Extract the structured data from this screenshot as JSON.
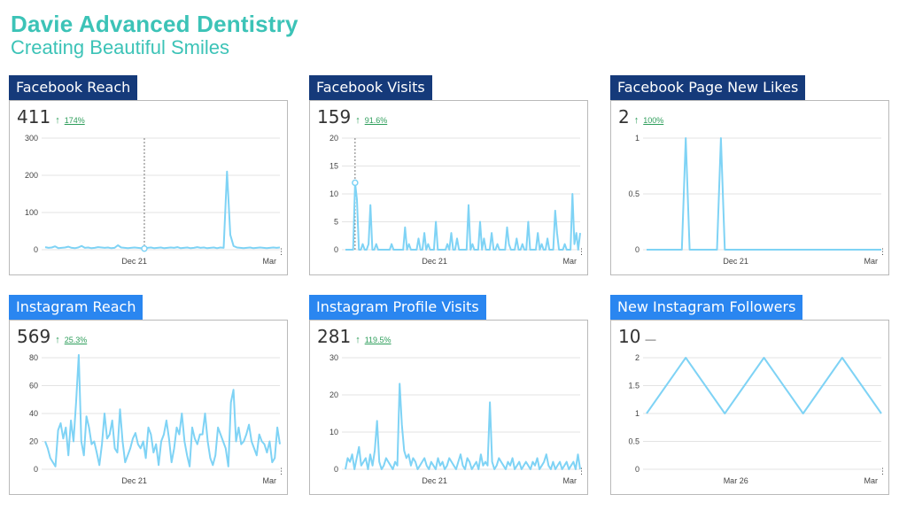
{
  "header": {
    "title": "Davie Advanced Dentistry",
    "subtitle": "Creating Beautiful Smiles"
  },
  "colors": {
    "brand": "#3cc3b7",
    "label_dark": "#153a7a",
    "label_light": "#2a86f0",
    "line": "#7fd3f5",
    "up": "#2e9e5b"
  },
  "panels": [
    {
      "label": "Facebook Reach",
      "value": "411",
      "change": "174%",
      "arrow": "↑",
      "style": "dark",
      "chart_data": {
        "type": "line",
        "yticks": [
          "0",
          "100",
          "200",
          "300"
        ],
        "ylim": [
          0,
          300
        ],
        "xlabels": [
          "Dec 21",
          "Mar"
        ],
        "values": [
          7,
          5,
          6,
          9,
          4,
          5,
          6,
          8,
          5,
          4,
          6,
          10,
          5,
          6,
          4,
          5,
          7,
          6,
          5,
          6,
          4,
          5,
          12,
          6,
          5,
          4,
          5,
          6,
          5,
          4,
          3,
          5,
          6,
          4,
          5,
          6,
          4,
          5,
          6,
          5,
          7,
          4,
          5,
          6,
          4,
          5,
          7,
          5,
          6,
          4,
          5,
          6,
          4,
          6,
          5,
          210,
          40,
          10,
          6,
          5,
          4,
          5,
          6,
          4,
          5,
          6,
          5,
          4,
          5,
          6,
          5,
          6
        ],
        "marker_index": 30
      }
    },
    {
      "label": "Facebook Visits",
      "value": "159",
      "change": "91.6%",
      "arrow": "↑",
      "style": "dark",
      "chart_data": {
        "type": "line",
        "yticks": [
          "0",
          "5",
          "10",
          "15",
          "20"
        ],
        "ylim": [
          0,
          20
        ],
        "xlabels": [
          "Dec 21",
          "Mar"
        ],
        "values": [
          0,
          0,
          0,
          0,
          0,
          12,
          9,
          0,
          0,
          1,
          0,
          0,
          1,
          8,
          0,
          0,
          1,
          0,
          0,
          0,
          0,
          0,
          0,
          0,
          1,
          0,
          0,
          0,
          0,
          0,
          0,
          4,
          0,
          1,
          0,
          0,
          0,
          0,
          2,
          0,
          0,
          3,
          0,
          1,
          0,
          0,
          0,
          5,
          0,
          0,
          0,
          0,
          0,
          1,
          0,
          3,
          0,
          0,
          2,
          0,
          0,
          0,
          0,
          0,
          8,
          0,
          1,
          0,
          0,
          0,
          5,
          0,
          2,
          0,
          0,
          0,
          3,
          0,
          0,
          1,
          0,
          0,
          0,
          0,
          4,
          1,
          0,
          0,
          0,
          2,
          0,
          0,
          1,
          0,
          0,
          5,
          0,
          0,
          0,
          0,
          3,
          0,
          1,
          0,
          0,
          2,
          0,
          0,
          0,
          7,
          3,
          0,
          0,
          0,
          1,
          0,
          0,
          0,
          10,
          1,
          3,
          0,
          3
        ],
        "marker_index": 5
      }
    },
    {
      "label": "Facebook Page New Likes",
      "value": "2",
      "change": "100%",
      "arrow": "↑",
      "style": "dark",
      "chart_data": {
        "type": "line",
        "yticks": [
          "0",
          "0.5",
          "1"
        ],
        "ylim": [
          0,
          1
        ],
        "xlabels": [
          "Dec 21",
          "Mar"
        ],
        "values": [
          0,
          0,
          0,
          0,
          0,
          0,
          0,
          0,
          0,
          0,
          1,
          0,
          0,
          0,
          0,
          0,
          0,
          0,
          0,
          1,
          0,
          0,
          0,
          0,
          0,
          0,
          0,
          0,
          0,
          0,
          0,
          0,
          0,
          0,
          0,
          0,
          0,
          0,
          0,
          0,
          0,
          0,
          0,
          0,
          0,
          0,
          0,
          0,
          0,
          0,
          0,
          0,
          0,
          0,
          0,
          0,
          0,
          0,
          0,
          0,
          0
        ]
      }
    },
    {
      "label": "Instagram Reach",
      "value": "569",
      "change": "25.3%",
      "arrow": "↑",
      "style": "light",
      "chart_data": {
        "type": "line",
        "yticks": [
          "0",
          "20",
          "40",
          "60",
          "80"
        ],
        "ylim": [
          0,
          80
        ],
        "xlabels": [
          "Dec 21",
          "Mar"
        ],
        "values": [
          20,
          15,
          8,
          5,
          2,
          28,
          33,
          22,
          30,
          10,
          35,
          20,
          48,
          82,
          20,
          10,
          38,
          30,
          18,
          20,
          12,
          3,
          18,
          40,
          22,
          25,
          35,
          15,
          12,
          43,
          20,
          5,
          10,
          15,
          22,
          26,
          18,
          15,
          20,
          8,
          30,
          25,
          12,
          18,
          3,
          20,
          25,
          35,
          22,
          5,
          15,
          30,
          25,
          40,
          20,
          10,
          2,
          30,
          22,
          18,
          25,
          25,
          40,
          20,
          8,
          3,
          10,
          30,
          25,
          20,
          15,
          2,
          48,
          57,
          20,
          30,
          18,
          20,
          25,
          32,
          20,
          15,
          10,
          25,
          20,
          18,
          12,
          20,
          5,
          8,
          30,
          18
        ]
      }
    },
    {
      "label": "Instagram Profile Visits",
      "value": "281",
      "change": "119.5%",
      "arrow": "↑",
      "style": "light",
      "chart_data": {
        "type": "line",
        "yticks": [
          "0",
          "10",
          "20",
          "30"
        ],
        "ylim": [
          0,
          30
        ],
        "xlabels": [
          "Dec 21",
          "Mar"
        ],
        "values": [
          0,
          3,
          2,
          4,
          0,
          3,
          6,
          1,
          2,
          3,
          0,
          4,
          1,
          5,
          13,
          2,
          0,
          1,
          3,
          2,
          1,
          0,
          2,
          1,
          23,
          12,
          5,
          3,
          4,
          1,
          3,
          2,
          0,
          1,
          2,
          3,
          1,
          0,
          2,
          1,
          0,
          3,
          1,
          2,
          0,
          1,
          3,
          2,
          1,
          0,
          2,
          4,
          1,
          0,
          3,
          2,
          0,
          1,
          2,
          0,
          4,
          1,
          2,
          1,
          18,
          2,
          0,
          1,
          3,
          2,
          1,
          0,
          2,
          1,
          3,
          0,
          1,
          2,
          0,
          1,
          2,
          1,
          0,
          2,
          1,
          3,
          0,
          1,
          2,
          4,
          1,
          0,
          2,
          0,
          1,
          2,
          0,
          1,
          2,
          0,
          1,
          2,
          0,
          4,
          0
        ]
      }
    },
    {
      "label": "New Instagram Followers",
      "value": "10",
      "change": "",
      "arrow": "",
      "style": "light",
      "chart_data": {
        "type": "line",
        "yticks": [
          "0",
          "0.5",
          "1",
          "1.5",
          "2"
        ],
        "ylim": [
          0,
          2
        ],
        "xlabels": [
          "Mar 26",
          "Mar"
        ],
        "values": [
          1,
          2,
          1,
          2,
          1,
          2,
          1
        ]
      }
    }
  ]
}
